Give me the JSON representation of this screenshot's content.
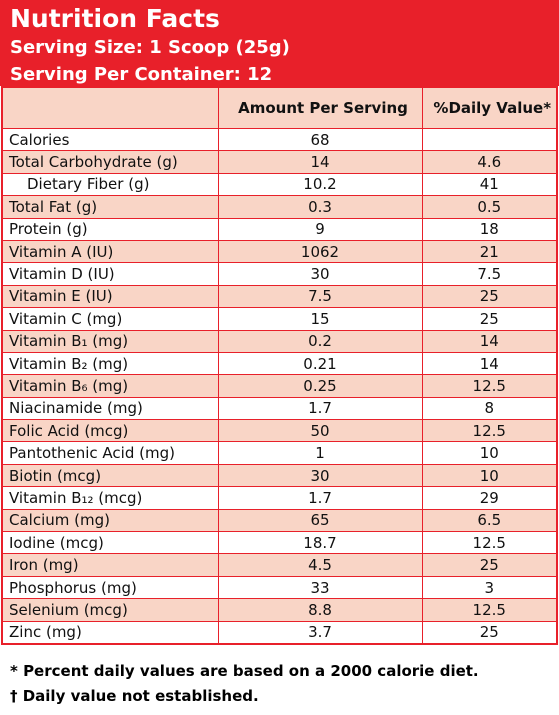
{
  "header": {
    "title": "Nutrition Facts",
    "serving_size": "Serving Size: 1 Scoop (25g)",
    "servings_per_container": "Serving Per Container: 12"
  },
  "table": {
    "columns": [
      null,
      "Amount Per Serving",
      "%Daily Value*"
    ],
    "rows": [
      [
        "Calories",
        "68",
        null
      ],
      [
        "Total Carbohydrate (g)",
        "14",
        "4.6"
      ],
      [
        "Dietary Fiber (g)",
        "10.2",
        "41"
      ],
      [
        "Total Fat (g)",
        "0.3",
        "0.5"
      ],
      [
        "Protein (g)",
        "9",
        "18"
      ],
      [
        "Vitamin A (IU)",
        "1062",
        "21"
      ],
      [
        "Vitamin D (IU)",
        "30",
        "7.5"
      ],
      [
        "Vitamin E (IU)",
        "7.5",
        "25"
      ],
      [
        "Vitamin C (mg)",
        "15",
        "25"
      ],
      [
        "Vitamin B₁ (mg)",
        "0.2",
        "14"
      ],
      [
        "Vitamin B₂ (mg)",
        "0.21",
        "14"
      ],
      [
        "Vitamin B₆ (mg)",
        "0.25",
        "12.5"
      ],
      [
        "Niacinamide (mg)",
        "1.7",
        "8"
      ],
      [
        "Folic Acid (mcg)",
        "50",
        "12.5"
      ],
      [
        "Pantothenic Acid (mg)",
        "1",
        "10"
      ],
      [
        "Biotin (mcg)",
        "30",
        "10"
      ],
      [
        "Vitamin B₁₂ (mcg)",
        "1.7",
        "29"
      ],
      [
        "Calcium (mg)",
        "65",
        "6.5"
      ],
      [
        "Iodine (mcg)",
        "18.7",
        "12.5"
      ],
      [
        "Iron (mg)",
        "4.5",
        "25"
      ],
      [
        "Phosphorus (mg)",
        "33",
        "3"
      ],
      [
        "Selenium (mcg)",
        "8.8",
        "12.5"
      ],
      [
        "Zinc (mg)",
        "3.7",
        "25"
      ]
    ]
  },
  "footnotes": [
    "* Percent daily values are based on a 2000 calorie diet.",
    "† Daily value not established."
  ]
}
